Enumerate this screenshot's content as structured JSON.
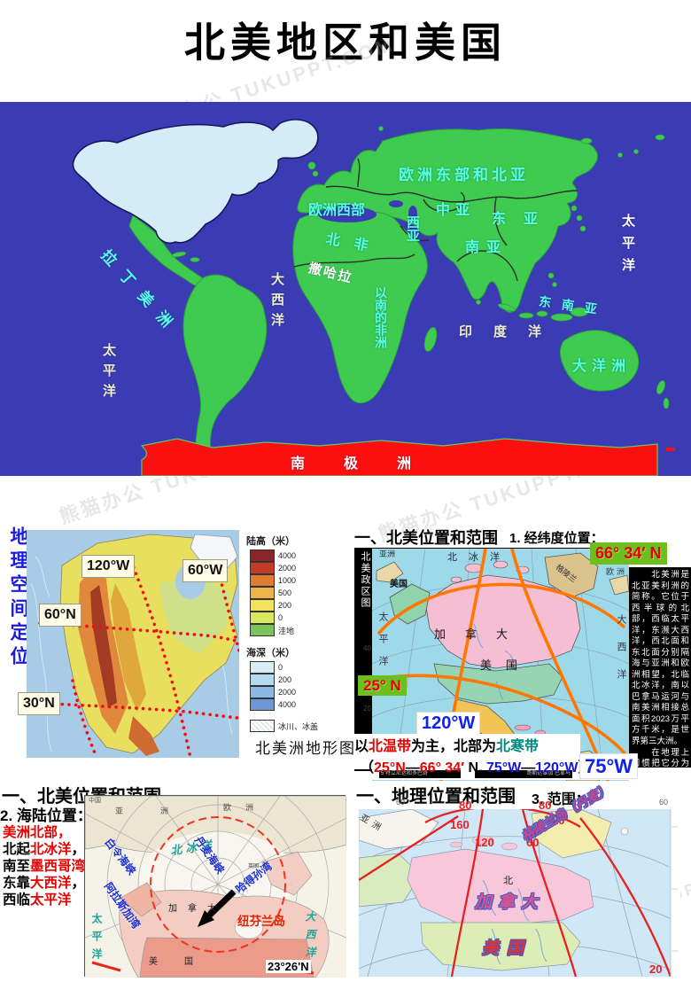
{
  "watermark": "熊猫办公 TUKUPPT.COM",
  "title": "北美地区和美国",
  "world_map": {
    "labels": [
      {
        "text": "欧洲东部和北亚"
      },
      {
        "text": "欧洲西部"
      },
      {
        "text": "中亚"
      },
      {
        "text": "东亚"
      },
      {
        "text": "西亚"
      },
      {
        "text": "南亚"
      },
      {
        "text": "北非"
      },
      {
        "text": "撒哈拉"
      },
      {
        "text": "以南的非洲"
      },
      {
        "text": "拉丁美洲"
      },
      {
        "text": "太平洋"
      },
      {
        "text": "大西洋"
      },
      {
        "text": "印度洋"
      },
      {
        "text": "东南亚"
      },
      {
        "text": "大洋洲"
      },
      {
        "text": "太平洋"
      },
      {
        "text": "南极洲"
      }
    ],
    "colors": {
      "ocean": "#3b3bb4",
      "land": "#3fcb50",
      "north_america": "#d3ecf5",
      "antarctica": "#fb0f0f",
      "label_cyan": "#55ffe6"
    }
  },
  "panel_topo": {
    "side_label": "地理空间定位",
    "coords": {
      "w120": "120°W",
      "w60": "60°W",
      "n60": "60°N",
      "n30": "30°N"
    },
    "legend": {
      "land_title": "陆高（米）",
      "land_items": [
        {
          "v": "4000",
          "c": "#8b2626"
        },
        {
          "v": "2000",
          "c": "#c43b2a"
        },
        {
          "v": "1000",
          "c": "#df7e33"
        },
        {
          "v": "500",
          "c": "#eeb44a"
        },
        {
          "v": "200",
          "c": "#f2e25c"
        },
        {
          "v": "0",
          "c": "#d9e85e"
        },
        {
          "v": "洼地",
          "c": "#7cc25c"
        }
      ],
      "sea_title": "海深（米）",
      "sea_items": [
        {
          "v": "0",
          "c": "#d8eef6"
        },
        {
          "v": "200",
          "c": "#b4daef"
        },
        {
          "v": "2000",
          "c": "#8cb9e4"
        },
        {
          "v": "4000",
          "c": "#6f97d8"
        }
      ],
      "glacier_label": "冰川、冰盖"
    },
    "caption": "北美洲地形图"
  },
  "panel_latlon": {
    "heading": "一、北美位置和范围",
    "subheading": "1. 经纬度位置：",
    "map_side_label": "北美政区图",
    "callouts": {
      "n6634": "66° 34′ N",
      "n25": "25° N",
      "w120": "120°W",
      "w75": "75°W"
    },
    "map_labels": [
      {
        "text": "亚洲"
      },
      {
        "text": "北冰洋"
      },
      {
        "text": "格陵兰"
      },
      {
        "text": "欧洲"
      },
      {
        "text": "美国"
      },
      {
        "text": "加拿大"
      },
      {
        "text": "美国"
      },
      {
        "text": "太平洋"
      },
      {
        "text": "大西洋"
      },
      {
        "text": "40"
      },
      {
        "text": "20"
      }
    ],
    "description": "　　北美洲是北亚美利洲的简称。它位于西半球的北部，西临太平洋，东濒大西洋，西北面和东北面分别隔海与亚洲和欧洲相望，北临北冰洋，南以巴拿马运河与南美洲相接总面积2023万平方千米，是世界第三大洲。\n　　在地理上习惯把它分为北美，美国以南部分与南美洲合称拉丁美洲。",
    "climate_line": [
      {
        "t": "以",
        "c": "#000000"
      },
      {
        "t": "北温带",
        "c": "#e60000"
      },
      {
        "t": "为主，北部为",
        "c": "#000000"
      },
      {
        "t": "北寒带",
        "c": "#00897b"
      }
    ],
    "range_line": [
      {
        "t": "（",
        "c": "#000000"
      },
      {
        "t": "25°N",
        "c": "#e60000"
      },
      {
        "t": "—",
        "c": "#000000"
      },
      {
        "t": "66° 34′ ",
        "c": "#e60000"
      },
      {
        "t": "N, ",
        "c": "#000000"
      },
      {
        "t": "75°W",
        "c": "#1515e0"
      },
      {
        "t": "—",
        "c": "#000000"
      },
      {
        "t": "120°W",
        "c": "#1515e0"
      },
      {
        "t": "）",
        "c": "#000000"
      }
    ],
    "scalebar": {
      "left": "5 特立尼达和多巴哥",
      "center": "100",
      "right": "哥斯达黎加 巴拿马"
    }
  },
  "panel_sealand": {
    "heading": "一、北美位置和范围",
    "subheading": "2. 海陆位置：",
    "lines": [
      [
        {
          "t": "美洲北部，",
          "c": "#e60000"
        }
      ],
      [
        {
          "t": "北起",
          "c": "#000000"
        },
        {
          "t": "北冰洋",
          "c": "#e60000"
        },
        {
          "t": "，",
          "c": "#000000"
        }
      ],
      [
        {
          "t": "南至",
          "c": "#000000"
        },
        {
          "t": "墨西哥湾",
          "c": "#e60000"
        },
        {
          "t": "，",
          "c": "#000000"
        }
      ],
      [
        {
          "t": "东靠",
          "c": "#000000"
        },
        {
          "t": "大西洋",
          "c": "#e60000"
        },
        {
          "t": "，",
          "c": "#000000"
        }
      ],
      [
        {
          "t": "西临",
          "c": "#000000"
        },
        {
          "t": "太平洋",
          "c": "#e60000"
        }
      ]
    ],
    "map_labels": [
      {
        "text": "中国"
      },
      {
        "text": "亚洲"
      },
      {
        "text": "欧洲"
      },
      {
        "text": "北冰洋"
      },
      {
        "text": "白令海峡"
      },
      {
        "text": "丹麦海峡"
      },
      {
        "text": "哈得孙湾"
      },
      {
        "text": "阿拉斯加湾"
      },
      {
        "text": "英国"
      },
      {
        "text": "加拿大"
      },
      {
        "text": "美国"
      },
      {
        "text": "纽芬兰岛"
      },
      {
        "text": "太平洋"
      },
      {
        "text": "大西洋"
      },
      {
        "text": "23°26'N"
      }
    ]
  },
  "panel_range": {
    "heading": "一、地理位置和范围",
    "subheading": "3. 范围：",
    "red_numbers": [
      "80",
      "80",
      "160",
      "120",
      "60",
      "20",
      "20"
    ],
    "gray_numbers": [
      "60",
      "60"
    ],
    "map_labels": [
      {
        "text": "亚洲"
      },
      {
        "text": "格陵兰岛（丹麦）"
      },
      {
        "text": "加拿大"
      },
      {
        "text": "美国"
      },
      {
        "text": "北"
      }
    ]
  }
}
